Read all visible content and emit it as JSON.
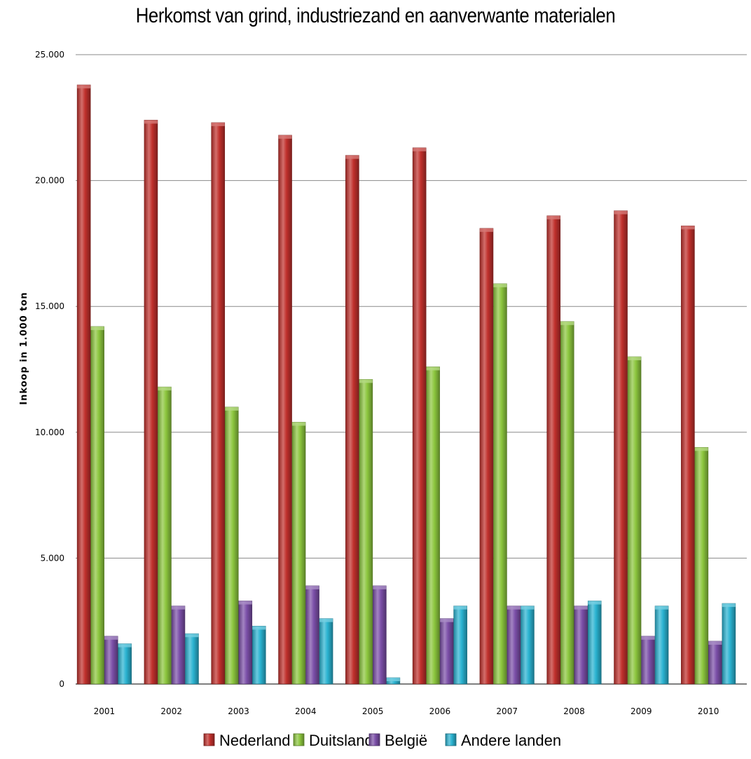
{
  "chart_data": {
    "type": "bar",
    "title": "Herkomst van grind, industriezand en aanverwante materialen",
    "ylabel": "Inkoop in 1.000 ton",
    "xlabel": "",
    "ylim": [
      0,
      25000
    ],
    "yticks": [
      0,
      5000,
      10000,
      15000,
      20000,
      25000
    ],
    "ytick_labels": [
      "0",
      "5.000",
      "10.000",
      "15.000",
      "20.000",
      "25.000"
    ],
    "grid": true,
    "legend_position": "bottom",
    "categories": [
      "2001",
      "2002",
      "2003",
      "2004",
      "2005",
      "2006",
      "2007",
      "2008",
      "2009",
      "2010"
    ],
    "series": [
      {
        "name": "Nederland",
        "color": "#c0302c",
        "values": [
          23800,
          22400,
          22300,
          21800,
          21000,
          21300,
          18100,
          18600,
          18800,
          18200
        ]
      },
      {
        "name": "Duitsland",
        "color": "#8cc63e",
        "values": [
          14200,
          11800,
          11000,
          10400,
          12100,
          12600,
          15900,
          14400,
          13000,
          9400
        ]
      },
      {
        "name": "België",
        "color": "#7b4fa8",
        "values": [
          1900,
          3100,
          3300,
          3900,
          3900,
          2600,
          3100,
          3100,
          1900,
          1700
        ]
      },
      {
        "name": "Andere landen",
        "color": "#2ab3d1",
        "values": [
          1600,
          2000,
          2300,
          2600,
          250,
          3100,
          3100,
          3300,
          3100,
          3200
        ]
      }
    ]
  }
}
